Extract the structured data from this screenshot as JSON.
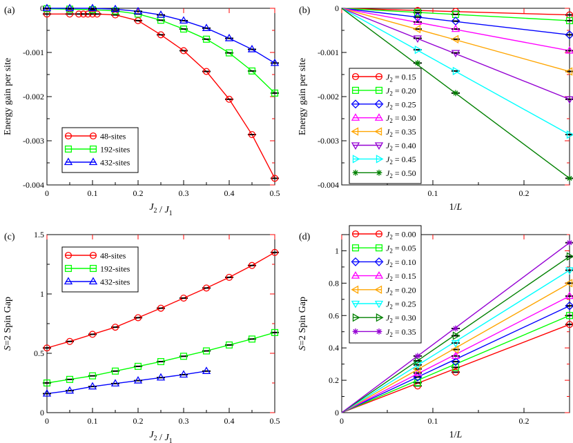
{
  "chart_data": [
    {
      "panel": "(a)",
      "type": "line",
      "xlabel": "J2 / J1",
      "ylabel": "Energy gain per site",
      "xlim": [
        0,
        0.5
      ],
      "ylim": [
        -0.004,
        0
      ],
      "xticks": [
        0,
        0.1,
        0.2,
        0.3,
        0.4,
        0.5
      ],
      "yticks": [
        0,
        -0.001,
        -0.002,
        -0.003,
        -0.004
      ],
      "xtick_labels": [
        "0",
        "0.1",
        "0.2",
        "0.3",
        "0.4",
        "0.5"
      ],
      "ytick_labels": [
        "0",
        "-0.001",
        "-0.002",
        "-0.003",
        "-0.004"
      ],
      "legend_position": "bottom-left",
      "series": [
        {
          "name": "48-sites",
          "color": "#ff0000",
          "marker": "circle",
          "x": [
            0,
            0.05,
            0.07,
            0.08,
            0.09,
            0.1,
            0.11,
            0.15,
            0.2,
            0.25,
            0.3,
            0.35,
            0.4,
            0.45,
            0.5
          ],
          "y": [
            -0.00013,
            -0.00013,
            -0.00013,
            -0.00013,
            -0.00013,
            -0.00013,
            -0.00013,
            -0.00015,
            -0.00028,
            -0.0006,
            -0.00096,
            -0.00143,
            -0.00206,
            -0.00286,
            -0.00385
          ]
        },
        {
          "name": "192-sites",
          "color": "#00ff00",
          "marker": "square",
          "x": [
            0,
            0.05,
            0.1,
            0.15,
            0.2,
            0.25,
            0.3,
            0.35,
            0.4,
            0.45,
            0.5
          ],
          "y": [
            -1e-05,
            -2e-05,
            -3e-05,
            -6e-05,
            -0.00013,
            -0.00027,
            -0.00047,
            -0.0007,
            -0.00101,
            -0.00142,
            -0.00192
          ]
        },
        {
          "name": "432-sites",
          "color": "#0000ff",
          "marker": "triangle-up",
          "x": [
            0,
            0.05,
            0.1,
            0.15,
            0.2,
            0.25,
            0.3,
            0.35,
            0.4,
            0.45,
            0.5
          ],
          "y": [
            0,
            0,
            0,
            -2e-05,
            -7e-05,
            -0.00015,
            -0.00028,
            -0.00045,
            -0.00068,
            -0.00093,
            -0.00124
          ]
        }
      ]
    },
    {
      "panel": "(b)",
      "type": "line",
      "xlabel": "1/L",
      "ylabel": "Energy gain per site",
      "xlim": [
        0,
        0.25
      ],
      "ylim": [
        -0.004,
        0
      ],
      "xticks": [
        0,
        0.1,
        0.2
      ],
      "yticks": [
        0,
        -0.001,
        -0.002,
        -0.003,
        -0.004
      ],
      "xtick_labels": [
        "",
        "0.1",
        "0.2"
      ],
      "ytick_labels": [
        "0",
        "-0.001",
        "-0.002",
        "-0.003",
        "-0.004"
      ],
      "legend_position": "bottom-left",
      "series": [
        {
          "name": "J2 = 0.15",
          "color": "#ff0000",
          "marker": "circle",
          "x": [
            0.0833,
            0.125,
            0.25
          ],
          "y": [
            -5e-05,
            -7e-05,
            -0.00015
          ]
        },
        {
          "name": "J2 = 0.20",
          "color": "#00ff00",
          "marker": "square",
          "x": [
            0.0833,
            0.125,
            0.25
          ],
          "y": [
            -0.0001,
            -0.00014,
            -0.00028
          ]
        },
        {
          "name": "J2 = 0.25",
          "color": "#0000ff",
          "marker": "diamond",
          "x": [
            0.0833,
            0.125,
            0.25
          ],
          "y": [
            -0.0002,
            -0.00029,
            -0.0006
          ]
        },
        {
          "name": "J2 = 0.30",
          "color": "#ff00ff",
          "marker": "triangle-up",
          "x": [
            0.0833,
            0.125,
            0.25
          ],
          "y": [
            -0.00031,
            -0.00047,
            -0.00096
          ]
        },
        {
          "name": "J2 = 0.35",
          "color": "#ffa500",
          "marker": "triangle-left",
          "x": [
            0.0833,
            0.125,
            0.25
          ],
          "y": [
            -0.00047,
            -0.0007,
            -0.00143
          ]
        },
        {
          "name": "J2 = 0.40",
          "color": "#9400d3",
          "marker": "triangle-down",
          "x": [
            0.0833,
            0.125,
            0.25
          ],
          "y": [
            -0.00068,
            -0.00101,
            -0.00206
          ]
        },
        {
          "name": "J2 = 0.45",
          "color": "#00ffff",
          "marker": "triangle-right",
          "x": [
            0.0833,
            0.125,
            0.25
          ],
          "y": [
            -0.00094,
            -0.00142,
            -0.00286
          ]
        },
        {
          "name": "J2 = 0.50",
          "color": "#008000",
          "marker": "star",
          "x": [
            0.0833,
            0.125,
            0.25
          ],
          "y": [
            -0.00124,
            -0.00192,
            -0.00385
          ]
        }
      ]
    },
    {
      "panel": "(c)",
      "type": "line",
      "xlabel": "J2 / J1",
      "ylabel": "S=2 Spin Gap",
      "xlim": [
        0,
        0.5
      ],
      "ylim": [
        0,
        1.5
      ],
      "xticks": [
        0,
        0.1,
        0.2,
        0.3,
        0.4,
        0.5
      ],
      "yticks": [
        0,
        0.5,
        1,
        1.5
      ],
      "xtick_labels": [
        "0",
        "0.1",
        "0.2",
        "0.3",
        "0.4",
        "0.5"
      ],
      "ytick_labels": [
        "0",
        "0.5",
        "1",
        "1.5"
      ],
      "legend_position": "top-left",
      "series": [
        {
          "name": "48-sites",
          "color": "#ff0000",
          "marker": "circle",
          "x": [
            0,
            0.05,
            0.1,
            0.15,
            0.2,
            0.25,
            0.3,
            0.35,
            0.4,
            0.45,
            0.5
          ],
          "y": [
            0.545,
            0.6,
            0.66,
            0.72,
            0.8,
            0.88,
            0.965,
            1.05,
            1.14,
            1.24,
            1.35
          ]
        },
        {
          "name": "192-sites",
          "color": "#00ff00",
          "marker": "square",
          "x": [
            0,
            0.05,
            0.1,
            0.15,
            0.2,
            0.25,
            0.3,
            0.35,
            0.4,
            0.45,
            0.5
          ],
          "y": [
            0.25,
            0.28,
            0.31,
            0.35,
            0.39,
            0.43,
            0.475,
            0.52,
            0.57,
            0.62,
            0.675
          ]
        },
        {
          "name": "432-sites",
          "color": "#0000ff",
          "marker": "triangle-up",
          "x": [
            0,
            0.05,
            0.1,
            0.15,
            0.2,
            0.25,
            0.3,
            0.35
          ],
          "y": [
            0.16,
            0.185,
            0.22,
            0.245,
            0.27,
            0.295,
            0.32,
            0.35
          ]
        }
      ]
    },
    {
      "panel": "(d)",
      "type": "line",
      "xlabel": "1/L",
      "ylabel": "S=2 Spin Gap",
      "xlim": [
        0,
        0.25
      ],
      "ylim": [
        0,
        1.1
      ],
      "xticks": [
        0,
        0.1,
        0.2
      ],
      "yticks": [
        0,
        0.2,
        0.4,
        0.6,
        0.8,
        1
      ],
      "xtick_labels": [
        "0",
        "0.1",
        "0.2"
      ],
      "ytick_labels": [
        "0",
        "0.2",
        "0.4",
        "0.6",
        "0.8",
        "1"
      ],
      "legend_position": "top-left",
      "series": [
        {
          "name": "J2 = 0.00",
          "color": "#ff0000",
          "marker": "circle",
          "x": [
            0.0833,
            0.125,
            0.25
          ],
          "y": [
            0.165,
            0.25,
            0.545
          ]
        },
        {
          "name": "J2 = 0.05",
          "color": "#00ff00",
          "marker": "square",
          "x": [
            0.0833,
            0.125,
            0.25
          ],
          "y": [
            0.185,
            0.28,
            0.6
          ]
        },
        {
          "name": "J2 = 0.10",
          "color": "#0000ff",
          "marker": "diamond",
          "x": [
            0.0833,
            0.125,
            0.25
          ],
          "y": [
            0.22,
            0.315,
            0.66
          ]
        },
        {
          "name": "J2 = 0.15",
          "color": "#ff00ff",
          "marker": "triangle-up",
          "x": [
            0.0833,
            0.125,
            0.25
          ],
          "y": [
            0.245,
            0.35,
            0.72
          ]
        },
        {
          "name": "J2 = 0.20",
          "color": "#ffa500",
          "marker": "triangle-left",
          "x": [
            0.0833,
            0.125,
            0.25
          ],
          "y": [
            0.27,
            0.39,
            0.8
          ]
        },
        {
          "name": "J2 = 0.25",
          "color": "#00ffff",
          "marker": "triangle-down",
          "x": [
            0.0833,
            0.125,
            0.25
          ],
          "y": [
            0.295,
            0.43,
            0.88
          ]
        },
        {
          "name": "J2 = 0.30",
          "color": "#008000",
          "marker": "triangle-right",
          "x": [
            0.0833,
            0.125,
            0.25
          ],
          "y": [
            0.32,
            0.475,
            0.965
          ]
        },
        {
          "name": "J2 = 0.35",
          "color": "#9400d3",
          "marker": "star",
          "x": [
            0.0833,
            0.125,
            0.25
          ],
          "y": [
            0.35,
            0.52,
            1.05
          ]
        }
      ]
    }
  ]
}
